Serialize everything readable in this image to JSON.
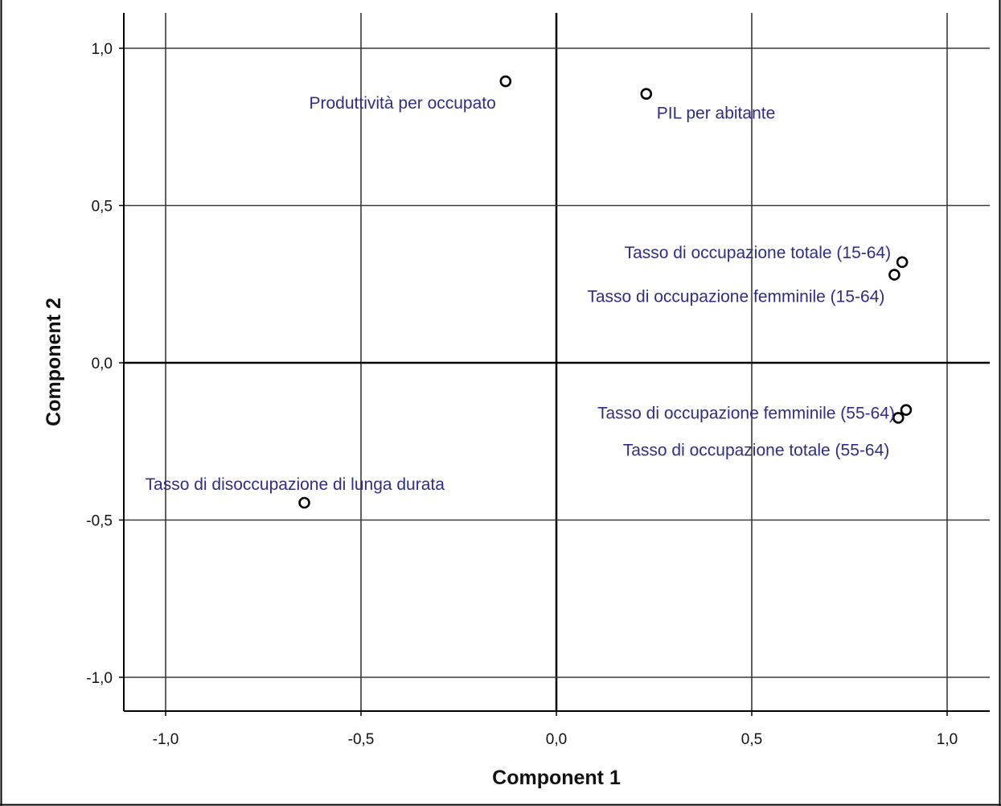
{
  "chart_data": {
    "type": "scatter",
    "title": "",
    "xlabel": "Component 1",
    "ylabel": "Component 2",
    "xlim": [
      -1.1,
      1.1
    ],
    "ylim": [
      -1.1,
      1.1
    ],
    "x_ticks": [
      -1.0,
      -0.5,
      0.0,
      0.5,
      1.0
    ],
    "y_ticks": [
      -1.0,
      -0.5,
      0.0,
      0.5,
      1.0
    ],
    "x_tick_labels": [
      "-1,0",
      "-0,5",
      "0,0",
      "0,5",
      "1,0"
    ],
    "y_tick_labels": [
      "-1,0",
      "-0,5",
      "0,0",
      "0,5",
      "1,0"
    ],
    "grid": true,
    "points": [
      {
        "label": "Produttività per occupato",
        "x": -0.13,
        "y": 0.895
      },
      {
        "label": "PIL per abitante",
        "x": 0.23,
        "y": 0.855
      },
      {
        "label": "Tasso di occupazione totale (15-64)",
        "x": 0.885,
        "y": 0.32
      },
      {
        "label": "Tasso di occupazione femminile (15-64)",
        "x": 0.865,
        "y": 0.28
      },
      {
        "label": "Tasso di occupazione femminile (55-64)",
        "x": 0.895,
        "y": -0.15
      },
      {
        "label": "Tasso di occupazione totale (55-64)",
        "x": 0.875,
        "y": -0.175
      },
      {
        "label": "Tasso di disoccupazione di lunga durata",
        "x": -0.645,
        "y": -0.445
      }
    ]
  },
  "colors": {
    "label_color": "#2e2e86",
    "grid_color": "#3a3a3a",
    "marker_stroke": "#000000",
    "background": "#ffffff"
  }
}
